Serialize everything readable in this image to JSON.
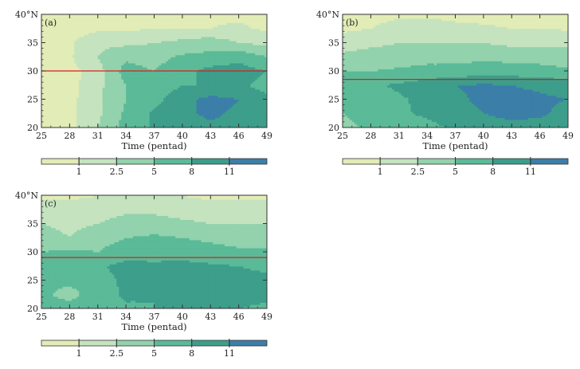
{
  "chart_data": [
    {
      "type": "heatmap",
      "panel_label": "(a)",
      "xlabel": "Time (pentad)",
      "ylabel": "",
      "x_ticks": [
        "25",
        "28",
        "31",
        "34",
        "37",
        "40",
        "43",
        "46",
        "49"
      ],
      "y_ticks": [
        "20",
        "25",
        "30",
        "35",
        "40°N"
      ],
      "xlim": [
        25,
        49
      ],
      "ylim": [
        20,
        40
      ],
      "reference_line_lat": 30,
      "reference_line_color": "#d62020",
      "levels": [
        1,
        2.5,
        5,
        8,
        11
      ],
      "legend_labels": [
        "1",
        "2.5",
        "5",
        "8",
        "11"
      ],
      "grid_x": [
        25,
        28,
        31,
        34,
        37,
        40,
        43,
        46,
        49
      ],
      "grid_y": [
        20,
        22.5,
        25,
        27.5,
        30,
        32.5,
        35,
        37.5,
        40
      ],
      "values": [
        [
          0.5,
          0.6,
          2.5,
          6.0,
          8.5,
          9.5,
          10.5,
          10.0,
          8.5
        ],
        [
          0.5,
          0.6,
          2.0,
          5.5,
          8.5,
          10.5,
          11.5,
          10.5,
          9.0
        ],
        [
          0.5,
          0.6,
          2.0,
          5.0,
          7.0,
          10.0,
          12.0,
          11.0,
          8.5
        ],
        [
          0.5,
          0.6,
          1.8,
          5.0,
          6.0,
          8.0,
          8.0,
          8.5,
          7.0
        ],
        [
          0.5,
          0.6,
          1.5,
          6.0,
          5.0,
          7.0,
          9.0,
          9.5,
          8.0
        ],
        [
          0.5,
          0.8,
          2.5,
          4.5,
          4.0,
          5.5,
          6.0,
          7.0,
          5.0
        ],
        [
          0.5,
          0.8,
          2.0,
          2.0,
          2.5,
          3.0,
          3.5,
          2.5,
          2.0
        ],
        [
          0.5,
          0.5,
          0.8,
          0.8,
          1.0,
          1.0,
          1.0,
          1.2,
          0.8
        ],
        [
          0.5,
          0.5,
          0.5,
          0.5,
          0.8,
          0.8,
          0.8,
          0.8,
          0.6
        ]
      ]
    },
    {
      "type": "heatmap",
      "panel_label": "(b)",
      "xlabel": "Time (pentad)",
      "ylabel": "",
      "x_ticks": [
        "25",
        "28",
        "31",
        "34",
        "37",
        "40",
        "43",
        "46",
        "49"
      ],
      "y_ticks": [
        "20",
        "25",
        "30",
        "35",
        "40°N"
      ],
      "xlim": [
        25,
        49
      ],
      "ylim": [
        20,
        40
      ],
      "reference_line_lat": 28.5,
      "reference_line_color": "#d62020",
      "levels": [
        1,
        2.5,
        5,
        8,
        11
      ],
      "legend_labels": [
        "1",
        "2.5",
        "5",
        "8",
        "11"
      ],
      "grid_x": [
        25,
        28,
        31,
        34,
        37,
        40,
        43,
        46,
        49
      ],
      "grid_y": [
        20,
        22.5,
        25,
        27.5,
        30,
        32.5,
        35,
        37.5,
        40
      ],
      "values": [
        [
          4.0,
          5.5,
          5.5,
          7.0,
          8.5,
          9.0,
          10.0,
          9.5,
          8.5
        ],
        [
          5.0,
          6.5,
          7.5,
          8.5,
          10.0,
          11.0,
          12.0,
          11.5,
          10.0
        ],
        [
          6.0,
          6.5,
          7.5,
          9.0,
          10.5,
          11.5,
          12.0,
          11.5,
          11.0
        ],
        [
          7.0,
          7.5,
          8.5,
          9.5,
          11.0,
          11.5,
          11.0,
          10.5,
          10.0
        ],
        [
          5.0,
          5.0,
          5.5,
          6.0,
          6.0,
          6.5,
          6.5,
          6.0,
          5.5
        ],
        [
          3.0,
          3.5,
          3.5,
          4.0,
          4.0,
          4.5,
          4.0,
          4.0,
          3.5
        ],
        [
          1.5,
          2.0,
          2.5,
          2.5,
          2.5,
          2.5,
          2.0,
          2.0,
          2.0
        ],
        [
          0.8,
          1.0,
          1.5,
          1.5,
          1.2,
          1.2,
          1.0,
          1.0,
          0.9
        ],
        [
          0.5,
          0.6,
          0.8,
          0.8,
          0.8,
          0.6,
          0.6,
          0.6,
          0.5
        ]
      ]
    },
    {
      "type": "heatmap",
      "panel_label": "(c)",
      "xlabel": "Time (pentad)",
      "ylabel": "",
      "x_ticks": [
        "25",
        "28",
        "31",
        "34",
        "37",
        "40",
        "43",
        "46",
        "49"
      ],
      "y_ticks": [
        "20",
        "25",
        "30",
        "35",
        "40°N"
      ],
      "xlim": [
        25,
        49
      ],
      "ylim": [
        20,
        40
      ],
      "reference_line_lat": 29,
      "reference_line_color": "#d62020",
      "levels": [
        1,
        2.5,
        5,
        8,
        11
      ],
      "legend_labels": [
        "1",
        "2.5",
        "5",
        "8",
        "11"
      ],
      "grid_x": [
        25,
        28,
        31,
        34,
        37,
        40,
        43,
        46,
        49
      ],
      "grid_y": [
        20,
        22.5,
        25,
        27.5,
        30,
        32.5,
        35,
        37.5,
        40
      ],
      "values": [
        [
          6.0,
          6.5,
          7.0,
          7.5,
          8.0,
          8.5,
          8.5,
          8.0,
          7.5
        ],
        [
          5.5,
          4.0,
          6.5,
          8.5,
          8.0,
          9.5,
          9.0,
          9.0,
          8.5
        ],
        [
          6.0,
          5.5,
          7.0,
          8.5,
          9.0,
          9.5,
          9.5,
          9.0,
          8.5
        ],
        [
          6.5,
          6.5,
          7.5,
          9.0,
          8.5,
          9.0,
          8.5,
          8.0,
          7.5
        ],
        [
          5.0,
          5.5,
          5.0,
          6.5,
          7.0,
          6.5,
          6.0,
          5.5,
          5.5
        ],
        [
          3.5,
          2.5,
          4.0,
          5.0,
          5.5,
          5.0,
          4.5,
          4.0,
          3.5
        ],
        [
          2.5,
          2.0,
          2.5,
          3.5,
          3.5,
          3.0,
          2.5,
          2.5,
          2.5
        ],
        [
          1.5,
          1.5,
          1.5,
          2.0,
          2.0,
          1.5,
          1.5,
          1.5,
          1.5
        ],
        [
          0.8,
          0.8,
          1.0,
          1.0,
          1.0,
          1.0,
          0.8,
          0.8,
          0.8
        ]
      ]
    }
  ],
  "colors": {
    "bins": [
      "#e2ecb6",
      "#c4e3be",
      "#92d2ac",
      "#5bba98",
      "#3d9e8b",
      "#3b7fa8"
    ],
    "axis": "#333333"
  }
}
